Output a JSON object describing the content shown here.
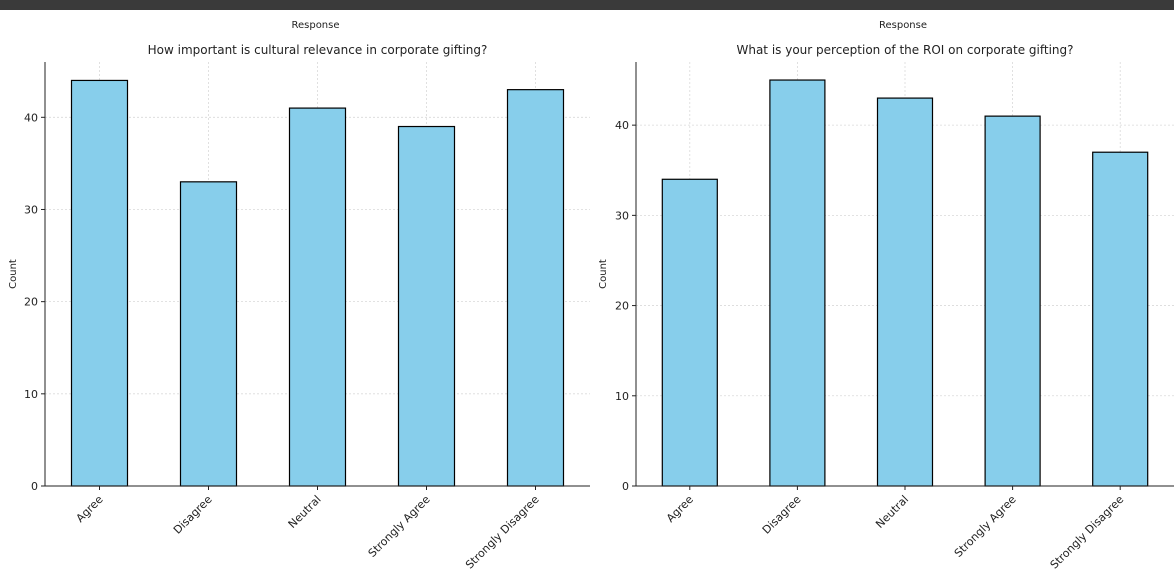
{
  "chart_data": [
    {
      "type": "bar",
      "super_label": "Response",
      "title": "How important is cultural relevance in corporate gifting?",
      "xlabel": "",
      "ylabel": "Count",
      "categories": [
        "Agree",
        "Disagree",
        "Neutral",
        "Strongly Agree",
        "Strongly Disagree"
      ],
      "values": [
        44,
        33,
        41,
        39,
        43
      ],
      "ylim": [
        0,
        46
      ],
      "yticks": [
        0,
        10,
        20,
        30,
        40
      ],
      "grid": true,
      "bar_color": "#87ceeb"
    },
    {
      "type": "bar",
      "super_label": "Response",
      "title": "What is your perception of the ROI on corporate gifting?",
      "xlabel": "",
      "ylabel": "Count",
      "categories": [
        "Agree",
        "Disagree",
        "Neutral",
        "Strongly Agree",
        "Strongly Disagree"
      ],
      "values": [
        34,
        45,
        43,
        41,
        37
      ],
      "ylim": [
        0,
        47
      ],
      "yticks": [
        0,
        10,
        20,
        30,
        40
      ],
      "grid": true,
      "bar_color": "#87ceeb"
    }
  ]
}
